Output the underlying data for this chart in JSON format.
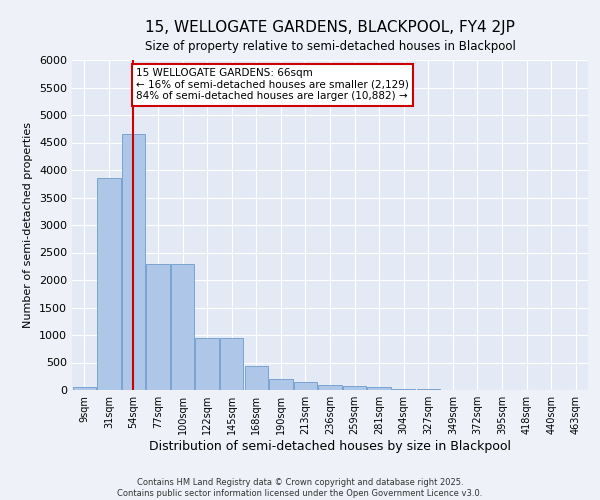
{
  "title": "15, WELLOGATE GARDENS, BLACKPOOL, FY4 2JP",
  "subtitle": "Size of property relative to semi-detached houses in Blackpool",
  "xlabel": "Distribution of semi-detached houses by size in Blackpool",
  "ylabel": "Number of semi-detached properties",
  "bin_labels": [
    "9sqm",
    "31sqm",
    "54sqm",
    "77sqm",
    "100sqm",
    "122sqm",
    "145sqm",
    "168sqm",
    "190sqm",
    "213sqm",
    "236sqm",
    "259sqm",
    "281sqm",
    "304sqm",
    "327sqm",
    "349sqm",
    "372sqm",
    "395sqm",
    "418sqm",
    "440sqm",
    "463sqm"
  ],
  "bar_values": [
    50,
    3850,
    4650,
    2300,
    2300,
    950,
    950,
    430,
    200,
    150,
    90,
    75,
    50,
    20,
    10,
    5,
    5,
    2,
    2,
    1,
    0
  ],
  "bar_color": "#aec6e8",
  "bar_edge_color": "#5a8fc4",
  "property_line_x": 2.0,
  "property_size": "66sqm",
  "pct_smaller": 16,
  "count_smaller": 2129,
  "pct_larger": 84,
  "count_larger": 10882,
  "ylim": [
    0,
    6000
  ],
  "yticks": [
    0,
    500,
    1000,
    1500,
    2000,
    2500,
    3000,
    3500,
    4000,
    4500,
    5000,
    5500,
    6000
  ],
  "annotation_box_color": "#ffffff",
  "annotation_box_edge": "#cc0000",
  "vline_color": "#cc0000",
  "footer_line1": "Contains HM Land Registry data © Crown copyright and database right 2025.",
  "footer_line2": "Contains public sector information licensed under the Open Government Licence v3.0.",
  "background_color": "#eef2f8",
  "plot_background": "#e4eaf5"
}
